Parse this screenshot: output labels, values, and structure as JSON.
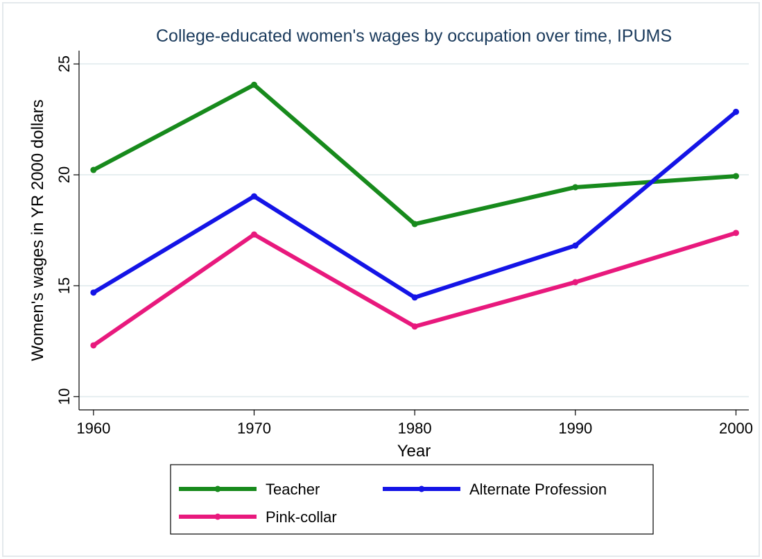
{
  "chart_data": {
    "type": "line",
    "title": "College-educated women's wages by occupation over time, IPUMS",
    "x_label": "Year",
    "y_label": "Women's wages in YR 2000 dollars",
    "x": [
      1960,
      1970,
      1980,
      1990,
      2000
    ],
    "series": [
      {
        "name": "Teacher",
        "color": "#178a1c",
        "values": [
          20.22,
          24.06,
          17.78,
          19.44,
          19.94
        ]
      },
      {
        "name": "Alternate Profession",
        "color": "#1414e6",
        "values": [
          14.69,
          19.03,
          14.47,
          16.81,
          22.84
        ]
      },
      {
        "name": "Pink-collar",
        "color": "#e8197d",
        "values": [
          12.31,
          17.31,
          13.16,
          15.16,
          17.38
        ]
      }
    ],
    "xlim": [
      1959.1,
      2000.8
    ],
    "ylim": [
      9.4,
      25.6
    ],
    "xticks": [
      1960,
      1970,
      1980,
      1990,
      2000
    ],
    "yticks": [
      10,
      15,
      20,
      25
    ],
    "grid": true
  }
}
